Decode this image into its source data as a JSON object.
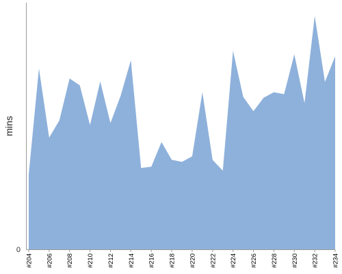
{
  "chart_data": {
    "type": "area",
    "title": "",
    "xlabel": "",
    "ylabel": "mins",
    "ylim": [
      0,
      100
    ],
    "y_ticks": [
      {
        "value": 0,
        "label": "0"
      }
    ],
    "grid": false,
    "legend": "none",
    "fill_color": "#8eb1db",
    "categories": [
      "#204",
      "#205",
      "#206",
      "#207",
      "#208",
      "#209",
      "#210",
      "#211",
      "#212",
      "#213",
      "#214",
      "#215",
      "#216",
      "#217",
      "#218",
      "#219",
      "#220",
      "#221",
      "#222",
      "#223",
      "#224",
      "#225",
      "#226",
      "#227",
      "#228",
      "#229",
      "#230",
      "#231",
      "#232",
      "#233",
      "#234"
    ],
    "tick_labels": [
      "#204",
      "#206",
      "#208",
      "#210",
      "#212",
      "#214",
      "#216",
      "#218",
      "#220",
      "#222",
      "#224",
      "#226",
      "#228",
      "#230",
      "#232",
      "#234"
    ],
    "values": [
      30.5,
      73.4,
      45.3,
      52.3,
      69.3,
      66.5,
      50.4,
      68.1,
      51.2,
      62.3,
      76.7,
      33.0,
      33.5,
      43.5,
      36.3,
      35.5,
      37.7,
      63.7,
      36.3,
      31.9,
      80.5,
      61.8,
      56.0,
      61.5,
      63.7,
      62.9,
      79.1,
      59.3,
      94.7,
      67.9,
      78.3
    ]
  }
}
